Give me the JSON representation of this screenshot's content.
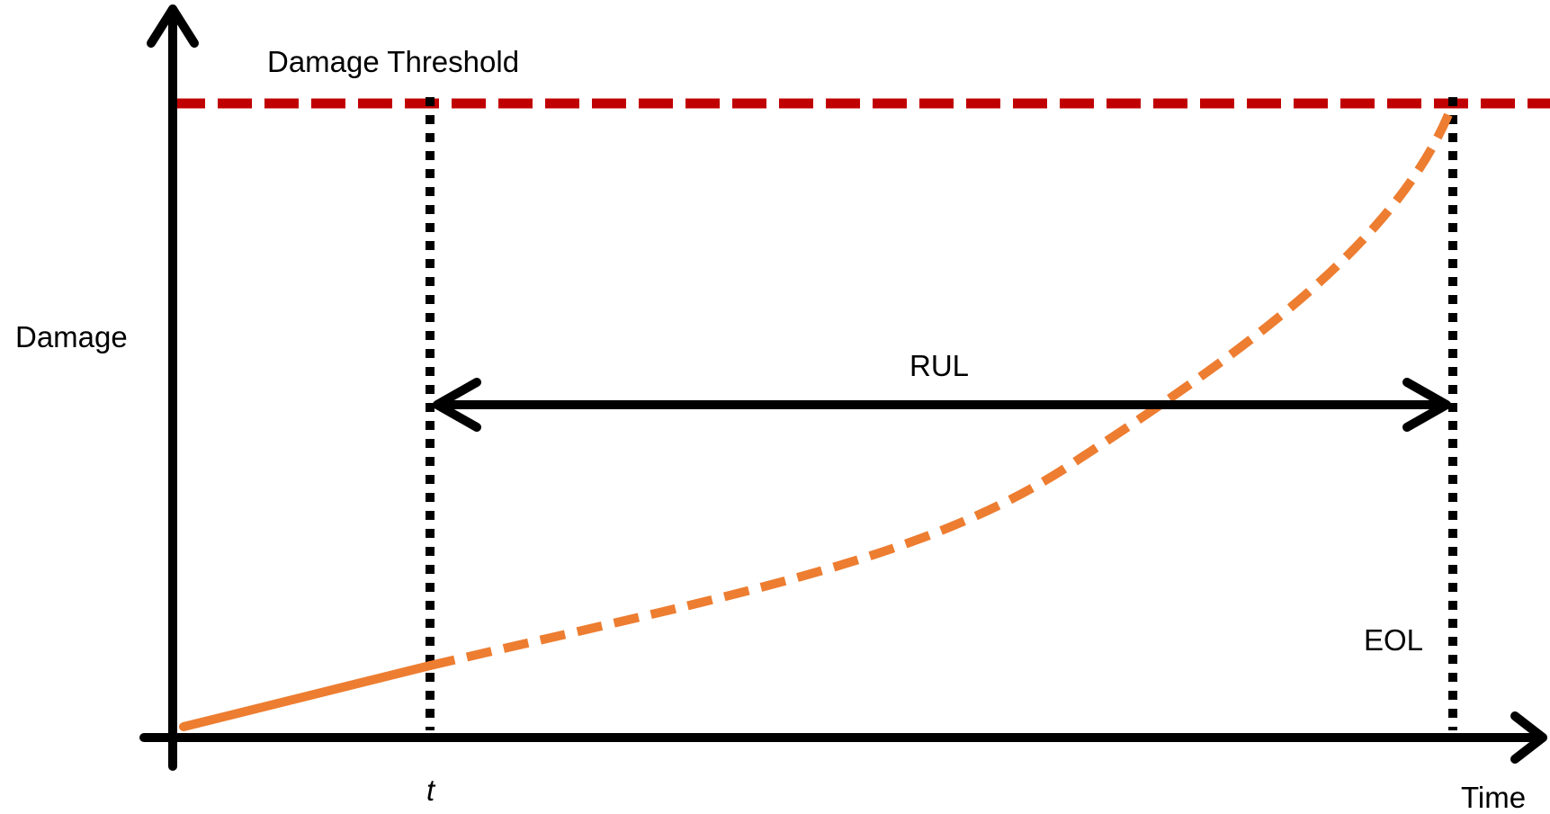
{
  "labels": {
    "damage_threshold": "Damage Threshold",
    "y_axis": "Damage",
    "x_axis": "Time",
    "current_time": "t",
    "rul": "RUL",
    "eol": "EOL"
  },
  "colors": {
    "axis": "#000000",
    "threshold_line": "#C00000",
    "damage_curve": "#ED7D31",
    "marker_lines": "#000000"
  }
}
